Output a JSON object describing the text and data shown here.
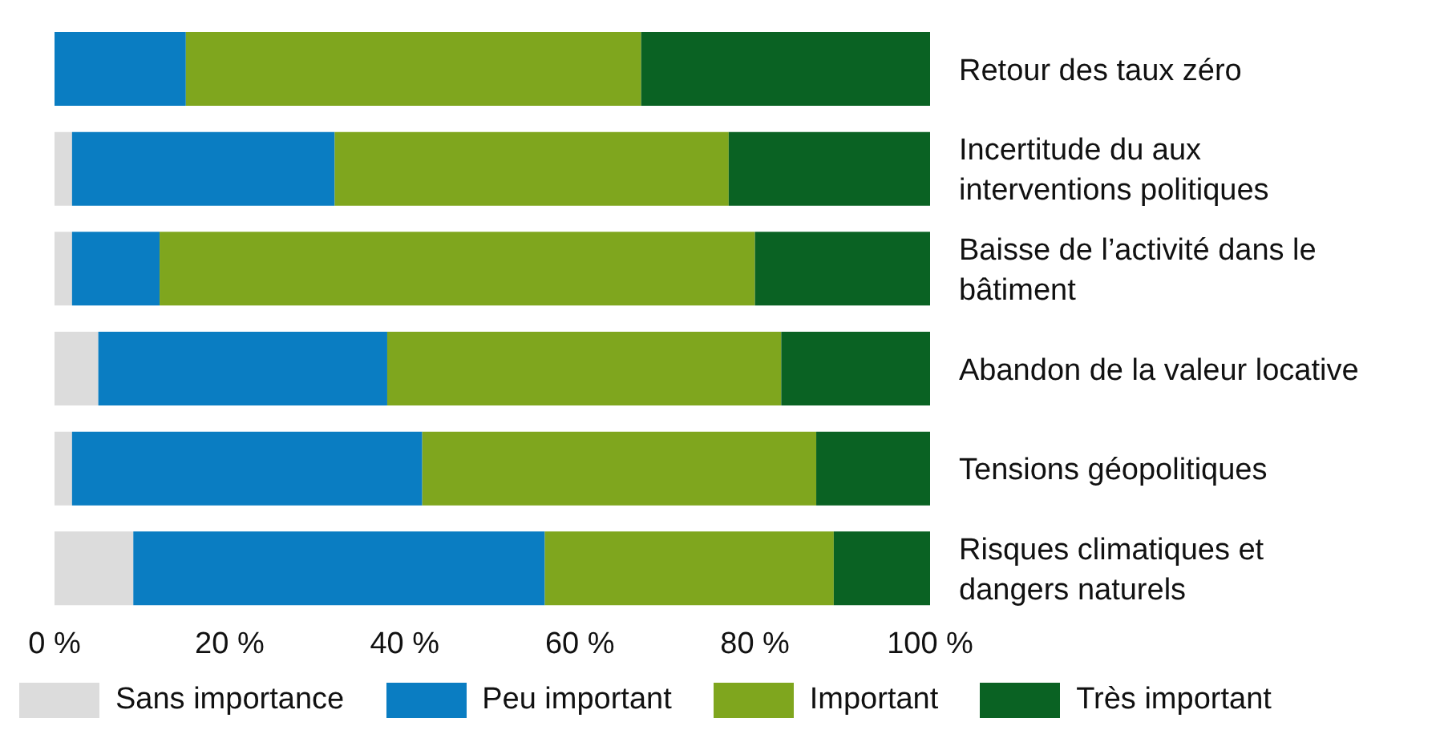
{
  "chart_data": {
    "type": "bar",
    "orientation": "horizontal",
    "stacked": true,
    "categories": [
      "Retour des taux zéro",
      "Incertitude du aux interventions politiques",
      "Baisse de l’activité dans le bâtiment",
      "Abandon de la valeur locative",
      "Tensions géopolitiques",
      "Risques climatiques et dangers naturels"
    ],
    "series": [
      {
        "name": "Sans importance",
        "color": "#dcdcdc",
        "values": [
          0,
          2,
          2,
          5,
          2,
          9
        ]
      },
      {
        "name": "Peu important",
        "color": "#0a7dc2",
        "values": [
          15,
          30,
          10,
          33,
          40,
          47
        ]
      },
      {
        "name": "Important",
        "color": "#7fa61e",
        "values": [
          52,
          45,
          68,
          45,
          45,
          33
        ]
      },
      {
        "name": "Très important",
        "color": "#0a6223",
        "values": [
          33,
          23,
          20,
          17,
          13,
          11
        ]
      }
    ],
    "xlim": [
      0,
      100
    ],
    "xticks": [
      {
        "value": 0,
        "label": "0 %"
      },
      {
        "value": 20,
        "label": "20 %"
      },
      {
        "value": 40,
        "label": "40 %"
      },
      {
        "value": 60,
        "label": "60 %"
      },
      {
        "value": 80,
        "label": "80 %"
      },
      {
        "value": 100,
        "label": "100 %"
      }
    ],
    "grid": false,
    "legend": "bottom"
  }
}
